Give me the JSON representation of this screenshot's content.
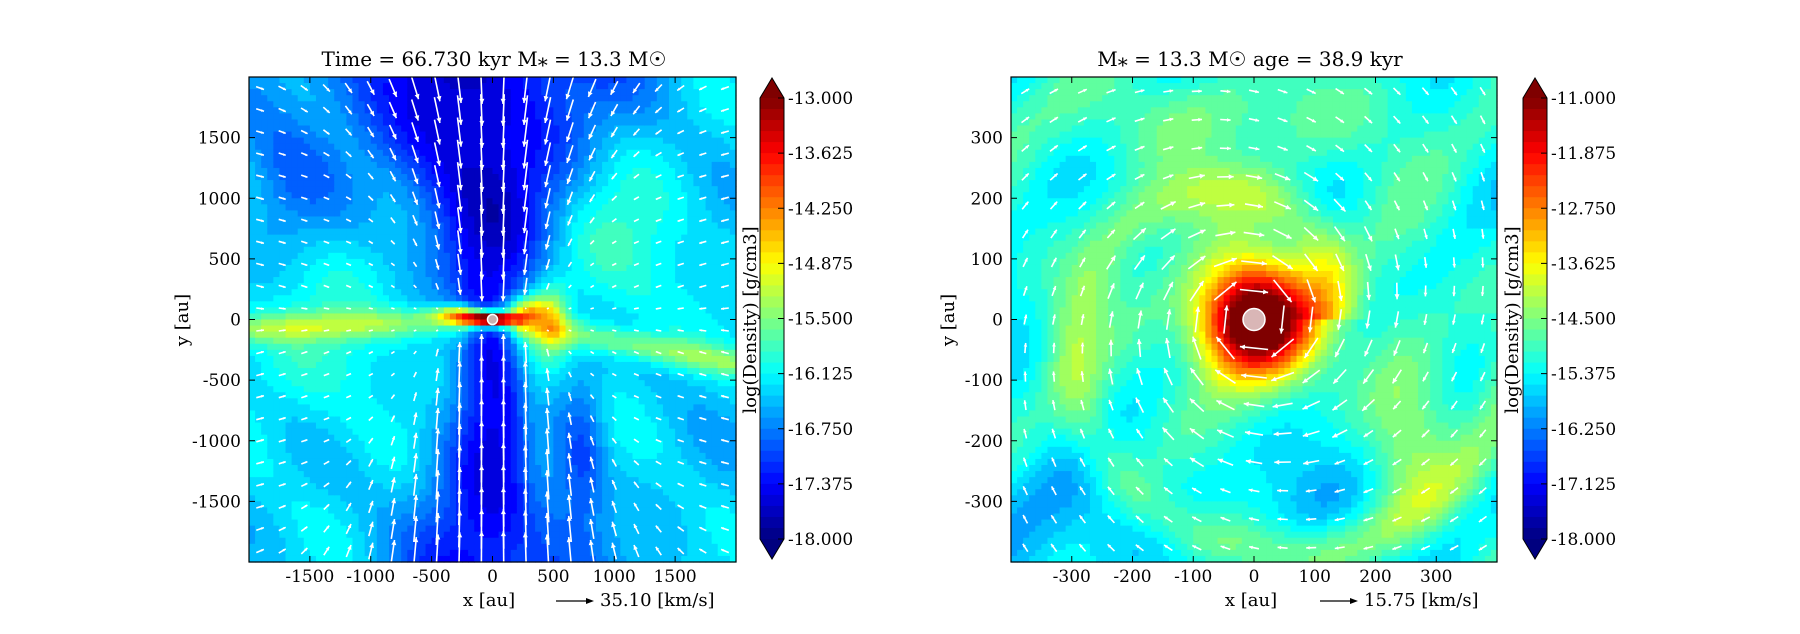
{
  "chart_data": [
    {
      "type": "heatmap",
      "title": "Time = 66.730 kyr    M⁎ = 13.3 M☉",
      "xlabel": "x [au]",
      "ylabel": "y [au]",
      "xlim": [
        -2000,
        2000
      ],
      "ylim": [
        -2000,
        2000
      ],
      "xticks": [
        -1500,
        -1000,
        -500,
        0,
        500,
        1000,
        1500
      ],
      "yticks": [
        -1500,
        -1000,
        -500,
        0,
        500,
        1000,
        1500
      ],
      "colorbar": {
        "label": "log(Density) [g/cm3]",
        "min": -18.0,
        "max": -13.0,
        "ticks": [
          "-13.000",
          "-13.625",
          "-14.250",
          "-14.875",
          "-15.500",
          "-16.125",
          "-16.750",
          "-17.375",
          "-18.000"
        ]
      },
      "vector_key": {
        "label": "35.10 [km/s]"
      },
      "field": "bipolar-outflow with equatorial disk",
      "grid": false
    },
    {
      "type": "heatmap",
      "title": "M⁎ = 13.3 M☉          age = 38.9 kyr",
      "xlabel": "x [au]",
      "ylabel": "y [au]",
      "xlim": [
        -400,
        400
      ],
      "ylim": [
        -400,
        400
      ],
      "xticks": [
        -300,
        -200,
        -100,
        0,
        100,
        200,
        300
      ],
      "yticks": [
        -300,
        -200,
        -100,
        0,
        100,
        200,
        300
      ],
      "colorbar": {
        "label": "log(Density) [g/cm3]",
        "min": -18.0,
        "max": -11.0,
        "ticks": [
          "-11.000",
          "-11.875",
          "-12.750",
          "-13.625",
          "-14.500",
          "-15.375",
          "-16.250",
          "-17.125",
          "-18.000"
        ]
      },
      "vector_key": {
        "label": "15.75 [km/s]"
      },
      "field": "rotating dense core with spiral arm",
      "grid": false
    }
  ],
  "colormap": [
    "#00007f",
    "#0000ff",
    "#007fff",
    "#00ffff",
    "#7fff7f",
    "#ffff00",
    "#ff7f00",
    "#ff0000",
    "#7f0000"
  ]
}
